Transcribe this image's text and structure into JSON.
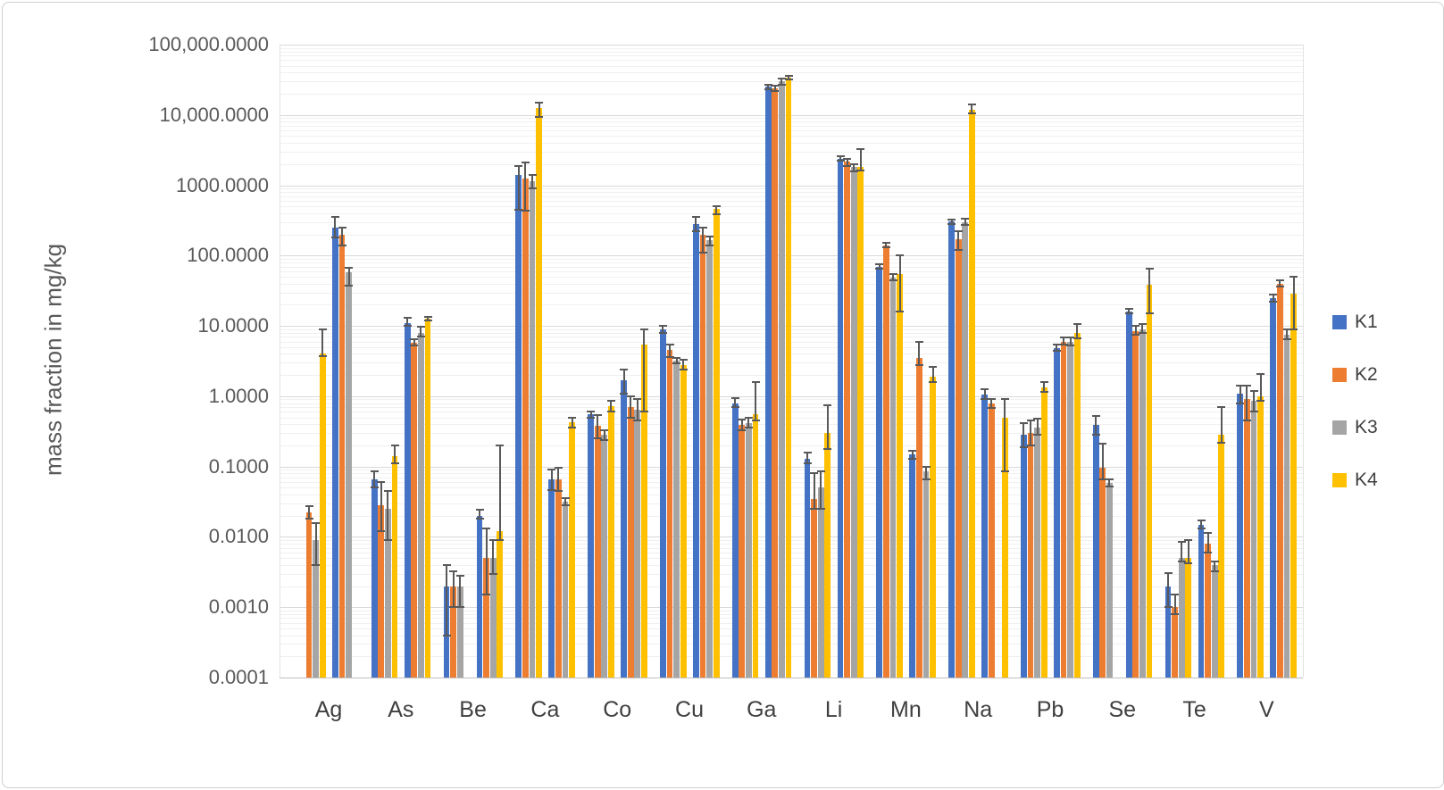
{
  "chart_data": {
    "type": "bar",
    "title": "",
    "ylabel": "mass fraction in mg/kg",
    "y_scale": "log",
    "ylim": [
      0.0001,
      100000
    ],
    "y_tick_labels": [
      "100,000.0000",
      "10,000.0000",
      "1000.0000",
      "100.0000",
      "10.0000",
      "1.0000",
      "0.1000",
      "0.0100",
      "0.0010",
      "0.0001"
    ],
    "grid": "horizontal major + log minor gridlines",
    "legend_position": "right",
    "series": [
      {
        "name": "K1",
        "color": "#4472C4"
      },
      {
        "name": "K2",
        "color": "#ED7D31"
      },
      {
        "name": "K3",
        "color": "#A5A5A5"
      },
      {
        "name": "K4",
        "color": "#FFC000"
      }
    ],
    "categories": [
      "Ag",
      "As",
      "Be",
      "Ca",
      "Co",
      "Cu",
      "Ga",
      "Li",
      "Mn",
      "Na",
      "Pb",
      "Se",
      "Te",
      "V"
    ],
    "note": "Each element has two sub-groups of K1-K4 bars with error bars; null = bar not present",
    "groups": [
      {
        "element": "Ag",
        "left": {
          "values": [
            null,
            0.022,
            0.009,
            4
          ],
          "err_lo": [
            null,
            0.018,
            0.004,
            3.7
          ],
          "err_hi": [
            null,
            0.027,
            0.0155,
            9
          ]
        },
        "right": {
          "values": [
            250,
            195,
            58,
            null
          ],
          "err_lo": [
            180,
            140,
            37,
            null
          ],
          "err_hi": [
            360,
            250,
            68,
            null
          ]
        }
      },
      {
        "element": "As",
        "left": {
          "values": [
            0.065,
            0.028,
            0.025,
            0.14
          ],
          "err_lo": [
            0.05,
            0.012,
            0.009,
            0.11
          ],
          "err_hi": [
            0.085,
            0.06,
            0.045,
            0.2
          ]
        },
        "right": {
          "values": [
            11,
            5.8,
            8,
            12.5
          ],
          "err_lo": [
            10,
            5.2,
            7,
            12
          ],
          "err_hi": [
            13,
            6.5,
            9.8,
            13.5
          ]
        }
      },
      {
        "element": "Be",
        "left": {
          "values": [
            0.002,
            0.002,
            0.002,
            null
          ],
          "err_lo": [
            0.0004,
            0.001,
            0.001,
            null
          ],
          "err_hi": [
            0.004,
            0.0032,
            0.0028,
            null
          ]
        },
        "right": {
          "values": [
            0.02,
            0.005,
            0.005,
            0.012
          ],
          "err_lo": [
            0.018,
            0.0015,
            0.003,
            0.009
          ],
          "err_hi": [
            0.024,
            0.013,
            0.009,
            0.2
          ]
        }
      },
      {
        "element": "Ca",
        "left": {
          "values": [
            1400,
            1250,
            1150,
            12500
          ],
          "err_lo": [
            450,
            430,
            900,
            9500
          ],
          "err_hi": [
            1900,
            2100,
            1400,
            15000
          ]
        },
        "right": {
          "values": [
            0.065,
            0.065,
            0.032,
            0.43
          ],
          "err_lo": [
            0.046,
            0.045,
            0.028,
            0.36
          ],
          "err_hi": [
            0.09,
            0.095,
            0.036,
            0.5
          ]
        }
      },
      {
        "element": "Co",
        "left": {
          "values": [
            0.55,
            0.38,
            0.28,
            0.72
          ],
          "err_lo": [
            0.5,
            0.25,
            0.24,
            0.6
          ],
          "err_hi": [
            0.6,
            0.54,
            0.33,
            0.85
          ]
        },
        "right": {
          "values": [
            1.7,
            0.7,
            0.65,
            5.5
          ],
          "err_lo": [
            1.1,
            0.5,
            0.45,
            0.6
          ],
          "err_hi": [
            2.4,
            1.0,
            0.9,
            9
          ]
        }
      },
      {
        "element": "Cu",
        "left": {
          "values": [
            9,
            4.6,
            3.2,
            2.8
          ],
          "err_lo": [
            8,
            3.6,
            2.9,
            2.4
          ],
          "err_hi": [
            10,
            5.5,
            3.5,
            3.3
          ]
        },
        "right": {
          "values": [
            280,
            200,
            165,
            460
          ],
          "err_lo": [
            225,
            110,
            140,
            390
          ],
          "err_hi": [
            350,
            250,
            185,
            510
          ]
        }
      },
      {
        "element": "Ga",
        "left": {
          "values": [
            0.8,
            0.39,
            0.42,
            0.55
          ],
          "err_lo": [
            0.7,
            0.33,
            0.36,
            0.45
          ],
          "err_hi": [
            0.93,
            0.46,
            0.5,
            1.6
          ]
        },
        "right": {
          "values": [
            25000,
            24000,
            30000,
            34000
          ],
          "err_lo": [
            23000,
            22000,
            27000,
            32000
          ],
          "err_hi": [
            27000,
            26000,
            33000,
            36000
          ]
        }
      },
      {
        "element": "Li",
        "left": {
          "values": [
            0.13,
            0.035,
            0.05,
            0.3
          ],
          "err_lo": [
            0.11,
            0.025,
            0.025,
            0.18
          ],
          "err_hi": [
            0.16,
            0.08,
            0.085,
            0.75
          ]
        },
        "right": {
          "values": [
            2400,
            2150,
            1800,
            1850
          ],
          "err_lo": [
            2250,
            1900,
            1580,
            1600
          ],
          "err_hi": [
            2570,
            2400,
            2010,
            3300
          ]
        }
      },
      {
        "element": "Mn",
        "left": {
          "values": [
            70,
            140,
            48,
            55
          ],
          "err_lo": [
            65,
            130,
            45,
            16
          ],
          "err_hi": [
            75,
            150,
            55,
            100
          ]
        },
        "right": {
          "values": [
            0.15,
            3.5,
            0.085,
            1.9
          ],
          "err_lo": [
            0.13,
            2.8,
            0.065,
            1.6
          ],
          "err_hi": [
            0.17,
            6,
            0.1,
            2.6
          ]
        }
      },
      {
        "element": "Na",
        "left": {
          "values": [
            310,
            170,
            300,
            12000
          ],
          "err_lo": [
            280,
            120,
            270,
            10500
          ],
          "err_hi": [
            325,
            225,
            330,
            14000
          ]
        },
        "right": {
          "values": [
            1.05,
            0.78,
            null,
            0.5
          ],
          "err_lo": [
            0.9,
            0.68,
            null,
            0.085
          ],
          "err_hi": [
            1.25,
            0.9,
            null,
            0.9
          ]
        }
      },
      {
        "element": "Pb",
        "left": {
          "values": [
            0.28,
            0.3,
            0.36,
            1.35
          ],
          "err_lo": [
            0.19,
            0.2,
            0.28,
            1.15
          ],
          "err_hi": [
            0.42,
            0.45,
            0.48,
            1.6
          ]
        },
        "right": {
          "values": [
            4.8,
            6.0,
            6.0,
            8
          ],
          "err_lo": [
            4.4,
            5.4,
            5.2,
            6.6
          ],
          "err_hi": [
            5.4,
            6.8,
            6.8,
            10.5
          ]
        }
      },
      {
        "element": "Se",
        "left": {
          "values": [
            0.39,
            0.095,
            0.058,
            null
          ],
          "err_lo": [
            0.28,
            0.065,
            0.052,
            null
          ],
          "err_hi": [
            0.53,
            0.21,
            0.065,
            null
          ]
        },
        "right": {
          "values": [
            16,
            8.5,
            9,
            38
          ],
          "err_lo": [
            15,
            7.5,
            8,
            15
          ],
          "err_hi": [
            17.5,
            10,
            10.5,
            65
          ]
        }
      },
      {
        "element": "Te",
        "left": {
          "values": [
            0.002,
            0.001,
            0.005,
            0.005
          ],
          "err_lo": [
            0.001,
            0.0008,
            0.0045,
            0.0042
          ],
          "err_hi": [
            0.0031,
            0.0015,
            0.0085,
            0.009
          ]
        },
        "right": {
          "values": [
            0.015,
            0.008,
            0.004,
            0.28
          ],
          "err_lo": [
            0.013,
            0.006,
            0.0032,
            0.22
          ],
          "err_hi": [
            0.017,
            0.0115,
            0.0045,
            0.7
          ]
        }
      },
      {
        "element": "V",
        "left": {
          "values": [
            1.1,
            0.9,
            0.85,
            1.0
          ],
          "err_lo": [
            0.8,
            0.45,
            0.6,
            0.85
          ],
          "err_hi": [
            1.4,
            1.4,
            1.2,
            2.1
          ]
        },
        "right": {
          "values": [
            25,
            40,
            7.5,
            29
          ],
          "err_lo": [
            22,
            36,
            6.5,
            9
          ],
          "err_hi": [
            28,
            45,
            8.8,
            50
          ]
        }
      }
    ]
  }
}
